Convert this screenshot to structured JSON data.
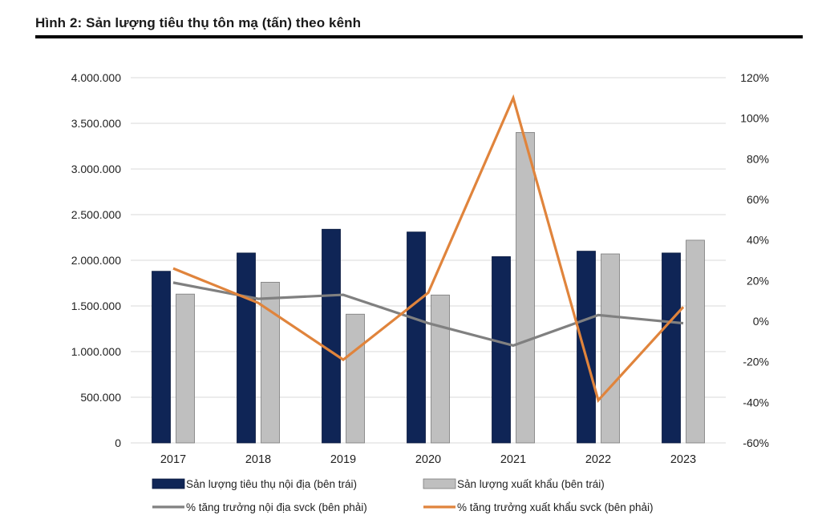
{
  "header": {
    "title": "Hình 2: Sản lượng tiêu thụ tôn mạ (tấn) theo kênh"
  },
  "chart_data": {
    "type": "bar",
    "title": "Hình 2: Sản lượng tiêu thụ tôn mạ (tấn) theo kênh",
    "categories": [
      "2017",
      "2018",
      "2019",
      "2020",
      "2021",
      "2022",
      "2023"
    ],
    "y_left": {
      "ylim": [
        0,
        4000000
      ],
      "ticks": [
        "0",
        "500.000",
        "1.000.000",
        "1.500.000",
        "2.000.000",
        "2.500.000",
        "3.000.000",
        "3.500.000",
        "4.000.000"
      ]
    },
    "y_right": {
      "ylim": [
        -60,
        120
      ],
      "ticks": [
        "-60%",
        "-40%",
        "-20%",
        "0%",
        "20%",
        "40%",
        "60%",
        "80%",
        "100%",
        "120%"
      ]
    },
    "grid": "horizontal",
    "legend_position": "bottom",
    "series": [
      {
        "name": "Sản lượng tiêu thụ nội địa (bên trái)",
        "type": "bar",
        "axis": "left",
        "color": "#0f2556",
        "values": [
          1880000,
          2080000,
          2340000,
          2310000,
          2040000,
          2100000,
          2080000
        ]
      },
      {
        "name": "Sản lượng xuất khẩu (bên trái)",
        "type": "bar",
        "axis": "left",
        "color": "#bfbfbf",
        "values": [
          1630000,
          1760000,
          1410000,
          1620000,
          3400000,
          2070000,
          2220000
        ]
      },
      {
        "name": "% tăng trưởng nội địa svck (bên phải)",
        "type": "line",
        "axis": "right",
        "color": "#808080",
        "values": [
          19,
          11,
          13,
          -1,
          -12,
          3,
          -1
        ]
      },
      {
        "name": "% tăng trưởng xuất khẩu svck (bên phải)",
        "type": "line",
        "axis": "right",
        "color": "#e0843c",
        "values": [
          26,
          9,
          -19,
          14,
          110,
          -39,
          7
        ]
      }
    ]
  }
}
